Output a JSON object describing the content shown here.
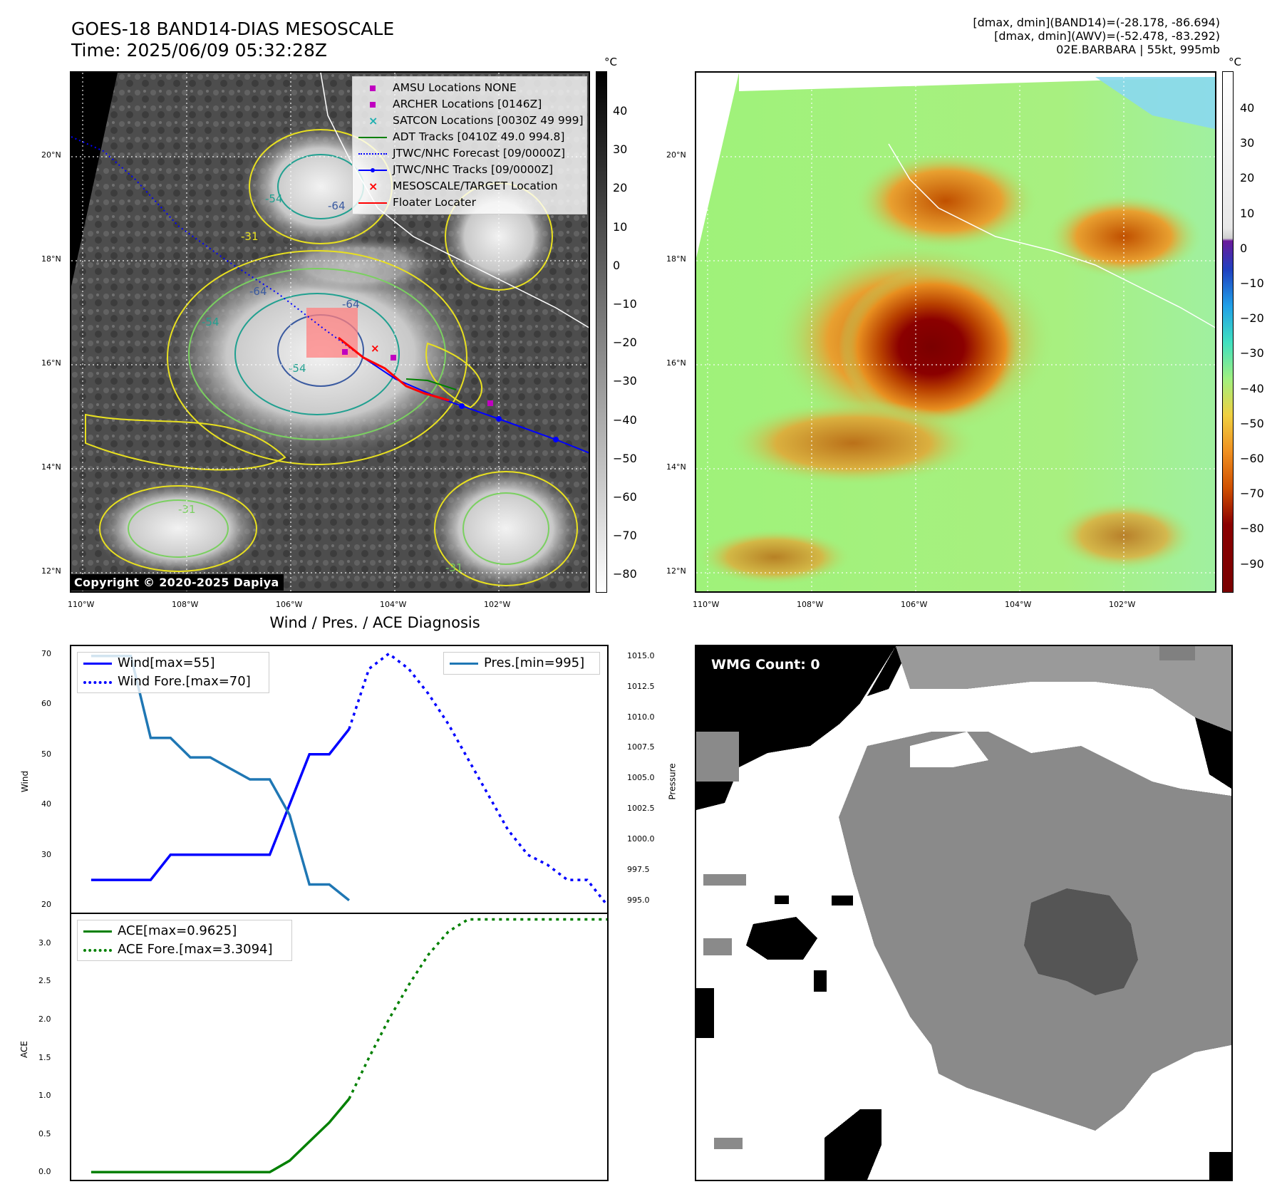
{
  "header": {
    "title_line1": "GOES-18 BAND14-DIAS MESOSCALE",
    "title_line2": "Time: 2025/06/09 05:32:28Z",
    "info_line1": "[dmax, dmin](BAND14)=(-28.178, -86.694)",
    "info_line2": "[dmax, dmin](AWV)=(-52.478, -83.292)",
    "info_line3": "02E.BARBARA | 55kt, 995mb"
  },
  "map_axes": {
    "lat_labels": [
      "20°N",
      "18°N",
      "16°N",
      "14°N",
      "12°N"
    ],
    "lon_labels": [
      "110°W",
      "108°W",
      "106°W",
      "104°W",
      "102°W"
    ]
  },
  "ir_colorbar": {
    "unit": "°C",
    "ticks": [
      "40",
      "30",
      "20",
      "10",
      "0",
      "−10",
      "−20",
      "−30",
      "−40",
      "−50",
      "−60",
      "−70",
      "−80"
    ]
  },
  "awv_colorbar": {
    "unit": "°C",
    "ticks": [
      "40",
      "30",
      "20",
      "10",
      "0",
      "−10",
      "−20",
      "−30",
      "−40",
      "−50",
      "−60",
      "−70",
      "−80",
      "−90"
    ]
  },
  "map_legend": {
    "items": [
      {
        "label": "AMSU Locations NONE",
        "color": "#c000c0",
        "kind": "square"
      },
      {
        "label": "ARCHER Locations [0146Z]",
        "color": "#c000c0",
        "kind": "square"
      },
      {
        "label": "SATCON Locations [0030Z 49 999]",
        "color": "#20b0b0",
        "kind": "x"
      },
      {
        "label": "ADT Tracks [0410Z 49.0 994.8]",
        "color": "#008000",
        "kind": "line"
      },
      {
        "label": "JTWC/NHC Forecast [09/0000Z]",
        "color": "#0000ff",
        "kind": "dotted"
      },
      {
        "label": "JTWC/NHC Tracks [09/0000Z]",
        "color": "#0000ff",
        "kind": "line-dot"
      },
      {
        "label": "MESOSCALE/TARGET Location",
        "color": "#ff0000",
        "kind": "x"
      },
      {
        "label": "Floater Locater",
        "color": "#ff0000",
        "kind": "line"
      }
    ]
  },
  "contour_labels": [
    "-54",
    "-64",
    "-31",
    "-64",
    "-54",
    "-31",
    "-31",
    "-54",
    "-64"
  ],
  "copyright": "Copyright © 2020-2025 Dapiya",
  "diagnosis_title": "Wind / Pres. / ACE Diagnosis",
  "wmg_label": "WMG Count: 0",
  "chart_data": [
    {
      "type": "line",
      "title": "Wind / Pres. / ACE Diagnosis",
      "ylabel": "Wind",
      "y2label": "Pressure",
      "ylim": [
        18.5,
        71.5
      ],
      "y2lim": [
        994.0,
        1015.8
      ],
      "xlim": [
        -1,
        26
      ],
      "yticks": [
        "70",
        "60",
        "50",
        "40",
        "30",
        "20"
      ],
      "y2ticks": [
        "1015.0",
        "1012.5",
        "1010.0",
        "1007.5",
        "1005.0",
        "1002.5",
        "1000.0",
        "997.5",
        "995.0"
      ],
      "legend_left": [
        "Wind[max=55]",
        "Wind Fore.[max=70]"
      ],
      "legend_right": [
        "Pres.[min=995]"
      ],
      "series": [
        {
          "name": "Wind[max=55]",
          "color": "#0000ff",
          "style": "solid",
          "axis": "left",
          "x": [
            0,
            1,
            2,
            3,
            4,
            5,
            6,
            7,
            8,
            9,
            10,
            11,
            12,
            13
          ],
          "values": [
            25,
            25,
            25,
            25,
            30,
            30,
            30,
            30,
            30,
            30,
            40,
            50,
            50,
            55
          ]
        },
        {
          "name": "Wind Fore.[max=70]",
          "color": "#0000ff",
          "style": "dotted",
          "axis": "left",
          "x": [
            13,
            14,
            15,
            16,
            17,
            18,
            19,
            20,
            21,
            22,
            23,
            24,
            25,
            26
          ],
          "values": [
            55,
            67,
            70,
            67,
            62,
            56,
            49,
            42,
            35,
            30,
            28,
            25,
            25,
            20
          ]
        },
        {
          "name": "Pres.[min=995]",
          "color": "#1f77b4",
          "style": "solid",
          "axis": "right",
          "x": [
            0,
            1,
            2,
            3,
            4,
            5,
            6,
            7,
            8,
            9,
            10,
            11,
            12,
            13
          ],
          "values": [
            1015,
            1015,
            1015,
            1008.3,
            1008.3,
            1006.7,
            1006.7,
            1005.8,
            1004.9,
            1004.9,
            1002.0,
            996.3,
            996.3,
            995
          ]
        }
      ]
    },
    {
      "type": "line",
      "ylabel": "ACE",
      "ylim": [
        -0.1,
        3.38
      ],
      "xlim": [
        -1,
        26
      ],
      "yticks": [
        "3.0",
        "2.5",
        "2.0",
        "1.5",
        "1.0",
        "0.5",
        "0.0"
      ],
      "legend": [
        "ACE[max=0.9625]",
        "ACE Fore.[max=3.3094]"
      ],
      "series": [
        {
          "name": "ACE[max=0.9625]",
          "color": "#008000",
          "style": "solid",
          "x": [
            0,
            1,
            2,
            3,
            4,
            5,
            6,
            7,
            8,
            9,
            10,
            11,
            12,
            13
          ],
          "values": [
            0,
            0,
            0,
            0,
            0,
            0,
            0,
            0,
            0,
            0,
            0.15,
            0.4,
            0.65,
            0.96
          ]
        },
        {
          "name": "ACE Fore.[max=3.3094]",
          "color": "#008000",
          "style": "dotted",
          "x": [
            13,
            14,
            15,
            16,
            17,
            18,
            19,
            20,
            21,
            22,
            23,
            24,
            25,
            26
          ],
          "values": [
            0.96,
            1.5,
            2.0,
            2.45,
            2.85,
            3.15,
            3.31,
            3.31,
            3.31,
            3.31,
            3.31,
            3.31,
            3.31,
            3.31
          ]
        }
      ]
    }
  ]
}
